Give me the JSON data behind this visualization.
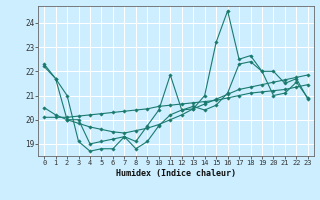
{
  "title": "",
  "xlabel": "Humidex (Indice chaleur)",
  "bg_color": "#cceeff",
  "line_color": "#1a7a6e",
  "grid_color": "#ffffff",
  "xlim": [
    -0.5,
    23.5
  ],
  "ylim": [
    18.5,
    24.7
  ],
  "yticks": [
    19,
    20,
    21,
    22,
    23,
    24
  ],
  "xticks": [
    0,
    1,
    2,
    3,
    4,
    5,
    6,
    7,
    8,
    9,
    10,
    11,
    12,
    13,
    14,
    15,
    16,
    17,
    18,
    19,
    20,
    21,
    22,
    23
  ],
  "series": [
    {
      "x": [
        0,
        1,
        2,
        3,
        4,
        5,
        6,
        7,
        8,
        9,
        10,
        11,
        12,
        13,
        14,
        15,
        16,
        17,
        18,
        19,
        20,
        21,
        22,
        23
      ],
      "y": [
        22.2,
        21.7,
        20.0,
        20.0,
        19.0,
        19.1,
        19.2,
        19.3,
        19.1,
        19.75,
        20.4,
        21.85,
        20.4,
        20.45,
        21.0,
        23.2,
        24.5,
        22.5,
        22.65,
        22.0,
        22.0,
        21.5,
        21.7,
        20.85
      ]
    },
    {
      "x": [
        0,
        1,
        2,
        3,
        4,
        5,
        6,
        7,
        8,
        9,
        10,
        11,
        12,
        13,
        14,
        15,
        16,
        17,
        18,
        19,
        20,
        21,
        22,
        23
      ],
      "y": [
        22.3,
        21.7,
        21.0,
        19.1,
        18.7,
        18.8,
        18.8,
        19.3,
        18.8,
        19.1,
        19.75,
        20.2,
        20.4,
        20.55,
        20.4,
        20.6,
        21.1,
        22.3,
        22.4,
        22.0,
        21.0,
        21.1,
        21.55,
        20.9
      ]
    },
    {
      "x": [
        0,
        1,
        2,
        3,
        4,
        5,
        6,
        7,
        8,
        9,
        10,
        11,
        12,
        13,
        14,
        15,
        16,
        17,
        18,
        19,
        20,
        21,
        22,
        23
      ],
      "y": [
        20.1,
        20.1,
        20.1,
        20.15,
        20.2,
        20.25,
        20.3,
        20.35,
        20.4,
        20.45,
        20.55,
        20.6,
        20.65,
        20.7,
        20.75,
        20.8,
        20.9,
        21.0,
        21.1,
        21.15,
        21.2,
        21.25,
        21.35,
        21.45
      ]
    },
    {
      "x": [
        0,
        1,
        2,
        3,
        4,
        5,
        6,
        7,
        8,
        9,
        10,
        11,
        12,
        13,
        14,
        15,
        16,
        17,
        18,
        19,
        20,
        21,
        22,
        23
      ],
      "y": [
        20.5,
        20.2,
        20.0,
        19.85,
        19.7,
        19.6,
        19.5,
        19.45,
        19.55,
        19.65,
        19.8,
        20.0,
        20.2,
        20.45,
        20.65,
        20.85,
        21.05,
        21.25,
        21.35,
        21.45,
        21.55,
        21.65,
        21.75,
        21.85
      ]
    }
  ]
}
